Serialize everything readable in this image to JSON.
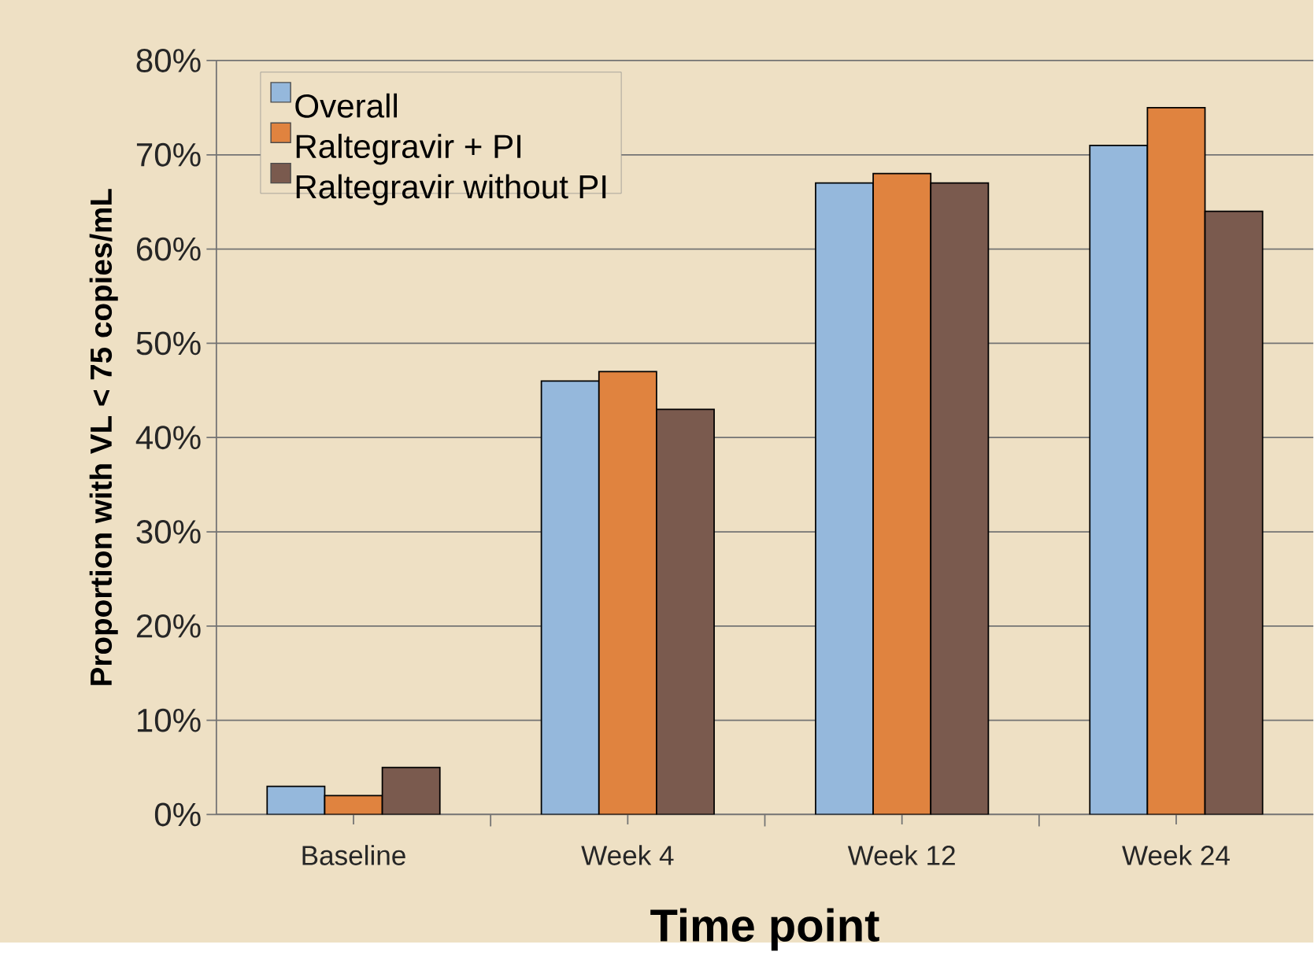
{
  "chart_data": {
    "type": "bar",
    "xlabel": "Time point",
    "ylabel": "Proportion with  VL < 75 copies/mL",
    "categories": [
      "Baseline",
      "Week 4",
      "Week 12",
      "Week 24"
    ],
    "series": [
      {
        "name": "Overall",
        "color": "#95b8dc",
        "values": [
          3,
          46,
          67,
          71
        ]
      },
      {
        "name": "Raltegravir + PI",
        "color": "#e0833f",
        "values": [
          2,
          47,
          68,
          75
        ]
      },
      {
        "name": "Raltegravir without PI",
        "color": "#7a5a4e",
        "values": [
          5,
          43,
          67,
          64
        ]
      }
    ],
    "ylim": [
      0,
      80
    ],
    "yticks": [
      {
        "value": 0,
        "label": "0%"
      },
      {
        "value": 10,
        "label": "10%"
      },
      {
        "value": 20,
        "label": "20%"
      },
      {
        "value": 30,
        "label": "30%"
      },
      {
        "value": 40,
        "label": "40%"
      },
      {
        "value": 50,
        "label": "50%"
      },
      {
        "value": 60,
        "label": "60%"
      },
      {
        "value": 70,
        "label": "70%"
      },
      {
        "value": 80,
        "label": "80%"
      }
    ],
    "grid": "y",
    "legend": "top left"
  }
}
